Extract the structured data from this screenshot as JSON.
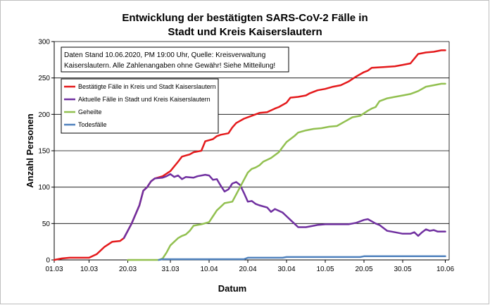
{
  "chart_data": {
    "type": "line",
    "title_line1": "Entwicklung der bestätigten SARS-CoV-2 Fälle in",
    "title_line2": "Stadt und Kreis Kaiserslautern",
    "xlabel": "Datum",
    "ylabel": "Anzahl Personen",
    "ylim": [
      0,
      300
    ],
    "yticks": [
      0,
      50,
      100,
      150,
      200,
      250,
      300
    ],
    "xlim": [
      0,
      102
    ],
    "xticks": [
      {
        "day": 0,
        "label": "01.03"
      },
      {
        "day": 9,
        "label": "10.03"
      },
      {
        "day": 19,
        "label": "20.03"
      },
      {
        "day": 30,
        "label": "31.03"
      },
      {
        "day": 40,
        "label": "10.04"
      },
      {
        "day": 50,
        "label": "20.04"
      },
      {
        "day": 60,
        "label": "30.04"
      },
      {
        "day": 70,
        "label": "10.05"
      },
      {
        "day": 80,
        "label": "20.05"
      },
      {
        "day": 90,
        "label": "30.05"
      },
      {
        "day": 101,
        "label": "10.06"
      }
    ],
    "grid": "horizontal",
    "note_line1": "Daten Stand 10.06.2020, PM 19:00 Uhr, Quelle: Kreisverwaltung",
    "note_line2": "Kaiserslautern. Alle Zahlenangaben ohne Gewähr! Siehe Mitteilung!",
    "legend_position": "top-left",
    "series": [
      {
        "name": "Bestätigte Fälle in Kreis und Stadt Kaiserslautern",
        "color": "#e41a1c",
        "points": [
          [
            0,
            0
          ],
          [
            2,
            2
          ],
          [
            4,
            3
          ],
          [
            9,
            3
          ],
          [
            11,
            8
          ],
          [
            13,
            18
          ],
          [
            15,
            25
          ],
          [
            17,
            26
          ],
          [
            18,
            30
          ],
          [
            20,
            50
          ],
          [
            22,
            75
          ],
          [
            23,
            95
          ],
          [
            24,
            100
          ],
          [
            25,
            108
          ],
          [
            26,
            112
          ],
          [
            28,
            115
          ],
          [
            30,
            122
          ],
          [
            32,
            135
          ],
          [
            33,
            142
          ],
          [
            35,
            145
          ],
          [
            36,
            148
          ],
          [
            38,
            150
          ],
          [
            39,
            163
          ],
          [
            41,
            166
          ],
          [
            42,
            170
          ],
          [
            43,
            172
          ],
          [
            45,
            174
          ],
          [
            46,
            182
          ],
          [
            47,
            188
          ],
          [
            49,
            194
          ],
          [
            51,
            198
          ],
          [
            53,
            202
          ],
          [
            55,
            203
          ],
          [
            57,
            208
          ],
          [
            58,
            210
          ],
          [
            60,
            216
          ],
          [
            61,
            223
          ],
          [
            63,
            224
          ],
          [
            65,
            226
          ],
          [
            66,
            229
          ],
          [
            68,
            233
          ],
          [
            70,
            235
          ],
          [
            72,
            238
          ],
          [
            74,
            240
          ],
          [
            76,
            245
          ],
          [
            78,
            252
          ],
          [
            80,
            258
          ],
          [
            81,
            260
          ],
          [
            82,
            264
          ],
          [
            85,
            265
          ],
          [
            88,
            266
          ],
          [
            90,
            268
          ],
          [
            92,
            270
          ],
          [
            94,
            283
          ],
          [
            96,
            285
          ],
          [
            98,
            286
          ],
          [
            100,
            288
          ],
          [
            101,
            288
          ]
        ]
      },
      {
        "name": "Aktuelle Fälle in Stadt und Kreis Kaiserslautern",
        "color": "#7030a0",
        "points": [
          [
            18,
            30
          ],
          [
            20,
            50
          ],
          [
            22,
            75
          ],
          [
            23,
            95
          ],
          [
            24,
            100
          ],
          [
            25,
            108
          ],
          [
            26,
            112
          ],
          [
            28,
            113
          ],
          [
            29,
            115
          ],
          [
            30,
            118
          ],
          [
            31,
            114
          ],
          [
            32,
            116
          ],
          [
            33,
            111
          ],
          [
            34,
            114
          ],
          [
            36,
            113
          ],
          [
            37,
            115
          ],
          [
            39,
            117
          ],
          [
            40,
            116
          ],
          [
            41,
            110
          ],
          [
            42,
            111
          ],
          [
            43,
            102
          ],
          [
            44,
            94
          ],
          [
            45,
            97
          ],
          [
            46,
            105
          ],
          [
            47,
            107
          ],
          [
            48,
            103
          ],
          [
            49,
            92
          ],
          [
            50,
            80
          ],
          [
            51,
            81
          ],
          [
            52,
            77
          ],
          [
            53,
            75
          ],
          [
            55,
            72
          ],
          [
            56,
            66
          ],
          [
            57,
            70
          ],
          [
            59,
            65
          ],
          [
            60,
            60
          ],
          [
            61,
            55
          ],
          [
            62,
            50
          ],
          [
            63,
            45
          ],
          [
            65,
            45
          ],
          [
            66,
            46
          ],
          [
            68,
            48
          ],
          [
            70,
            49
          ],
          [
            72,
            49
          ],
          [
            74,
            49
          ],
          [
            76,
            49
          ],
          [
            78,
            51
          ],
          [
            80,
            55
          ],
          [
            81,
            56
          ],
          [
            82,
            53
          ],
          [
            83,
            50
          ],
          [
            84,
            48
          ],
          [
            86,
            40
          ],
          [
            88,
            38
          ],
          [
            90,
            36
          ],
          [
            92,
            36
          ],
          [
            93,
            38
          ],
          [
            94,
            33
          ],
          [
            95,
            38
          ],
          [
            96,
            42
          ],
          [
            97,
            40
          ],
          [
            98,
            41
          ],
          [
            99,
            39
          ],
          [
            101,
            39
          ]
        ]
      },
      {
        "name": "Geheilte",
        "color": "#92c050",
        "points": [
          [
            19,
            0
          ],
          [
            27,
            0
          ],
          [
            28,
            2
          ],
          [
            29,
            10
          ],
          [
            30,
            20
          ],
          [
            31,
            25
          ],
          [
            32,
            30
          ],
          [
            33,
            33
          ],
          [
            34,
            35
          ],
          [
            35,
            40
          ],
          [
            36,
            47
          ],
          [
            37,
            48
          ],
          [
            38,
            49
          ],
          [
            40,
            52
          ],
          [
            41,
            60
          ],
          [
            42,
            68
          ],
          [
            43,
            73
          ],
          [
            44,
            78
          ],
          [
            46,
            80
          ],
          [
            47,
            90
          ],
          [
            48,
            100
          ],
          [
            49,
            110
          ],
          [
            50,
            120
          ],
          [
            51,
            125
          ],
          [
            52,
            127
          ],
          [
            53,
            130
          ],
          [
            54,
            135
          ],
          [
            56,
            140
          ],
          [
            58,
            148
          ],
          [
            59,
            155
          ],
          [
            60,
            162
          ],
          [
            62,
            170
          ],
          [
            63,
            175
          ],
          [
            65,
            178
          ],
          [
            67,
            180
          ],
          [
            69,
            181
          ],
          [
            71,
            183
          ],
          [
            73,
            184
          ],
          [
            75,
            190
          ],
          [
            77,
            196
          ],
          [
            79,
            198
          ],
          [
            81,
            205
          ],
          [
            82,
            208
          ],
          [
            83,
            210
          ],
          [
            84,
            218
          ],
          [
            86,
            222
          ],
          [
            88,
            224
          ],
          [
            90,
            226
          ],
          [
            92,
            228
          ],
          [
            94,
            232
          ],
          [
            96,
            238
          ],
          [
            98,
            240
          ],
          [
            100,
            242
          ],
          [
            101,
            242
          ]
        ]
      },
      {
        "name": "Todesfälle",
        "color": "#4f81bd",
        "points": [
          [
            27,
            0
          ],
          [
            28,
            1
          ],
          [
            49,
            1
          ],
          [
            50,
            3
          ],
          [
            59,
            3
          ],
          [
            60,
            4
          ],
          [
            79,
            4
          ],
          [
            80,
            5
          ],
          [
            101,
            5
          ]
        ]
      }
    ]
  }
}
